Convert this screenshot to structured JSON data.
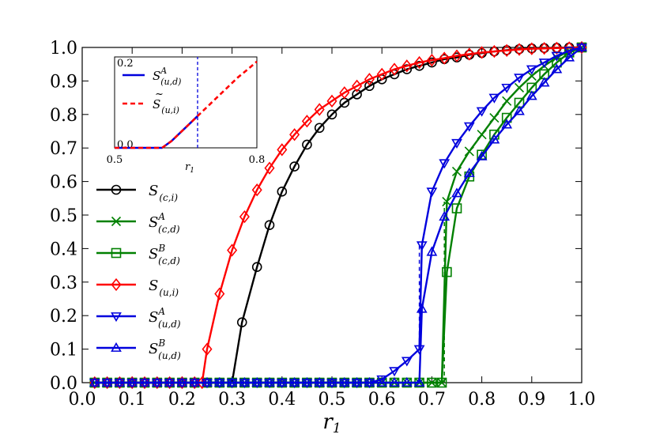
{
  "chart_data": {
    "type": "line",
    "xlabel": "r1",
    "xlim": [
      0.0,
      1.0
    ],
    "ylim": [
      0.0,
      1.0
    ],
    "xticks": [
      "0.0",
      "0.1",
      "0.2",
      "0.3",
      "0.4",
      "0.5",
      "0.6",
      "0.7",
      "0.8",
      "0.9",
      "1.0"
    ],
    "yticks": [
      "0.0",
      "0.1",
      "0.2",
      "0.3",
      "0.4",
      "0.5",
      "0.6",
      "0.7",
      "0.8",
      "0.9",
      "1.0"
    ],
    "legend_position": "center-left",
    "grid": false,
    "series": [
      {
        "name": "S(c,i)",
        "color": "#000000",
        "marker": "circle",
        "points": [
          [
            0.025,
            0
          ],
          [
            0.05,
            0
          ],
          [
            0.075,
            0
          ],
          [
            0.1,
            0
          ],
          [
            0.125,
            0
          ],
          [
            0.15,
            0
          ],
          [
            0.175,
            0
          ],
          [
            0.2,
            0
          ],
          [
            0.225,
            0
          ],
          [
            0.25,
            0
          ],
          [
            0.275,
            0
          ],
          [
            0.3,
            0
          ],
          [
            0.32,
            0.18
          ],
          [
            0.35,
            0.345
          ],
          [
            0.375,
            0.47
          ],
          [
            0.4,
            0.57
          ],
          [
            0.425,
            0.645
          ],
          [
            0.45,
            0.71
          ],
          [
            0.475,
            0.76
          ],
          [
            0.5,
            0.8
          ],
          [
            0.525,
            0.835
          ],
          [
            0.55,
            0.86
          ],
          [
            0.575,
            0.885
          ],
          [
            0.6,
            0.905
          ],
          [
            0.625,
            0.92
          ],
          [
            0.65,
            0.935
          ],
          [
            0.675,
            0.945
          ],
          [
            0.7,
            0.955
          ],
          [
            0.725,
            0.965
          ],
          [
            0.75,
            0.97
          ],
          [
            0.775,
            0.978
          ],
          [
            0.8,
            0.983
          ],
          [
            0.825,
            0.988
          ],
          [
            0.85,
            0.992
          ],
          [
            0.875,
            0.995
          ],
          [
            0.9,
            0.997
          ],
          [
            0.925,
            0.998
          ],
          [
            0.95,
            0.999
          ],
          [
            0.975,
            1.0
          ],
          [
            1.0,
            1.0
          ]
        ]
      },
      {
        "name": "S^A(c,d)",
        "color": "#008000",
        "marker": "x",
        "points": [
          [
            0.025,
            0
          ],
          [
            0.05,
            0
          ],
          [
            0.075,
            0
          ],
          [
            0.1,
            0
          ],
          [
            0.125,
            0
          ],
          [
            0.15,
            0
          ],
          [
            0.175,
            0
          ],
          [
            0.2,
            0
          ],
          [
            0.225,
            0
          ],
          [
            0.25,
            0
          ],
          [
            0.275,
            0
          ],
          [
            0.3,
            0
          ],
          [
            0.325,
            0
          ],
          [
            0.35,
            0
          ],
          [
            0.375,
            0
          ],
          [
            0.4,
            0
          ],
          [
            0.425,
            0
          ],
          [
            0.45,
            0
          ],
          [
            0.475,
            0
          ],
          [
            0.5,
            0
          ],
          [
            0.525,
            0
          ],
          [
            0.55,
            0
          ],
          [
            0.575,
            0
          ],
          [
            0.6,
            0
          ],
          [
            0.625,
            0
          ],
          [
            0.65,
            0
          ],
          [
            0.675,
            0
          ],
          [
            0.7,
            0
          ],
          [
            0.72,
            0
          ],
          [
            0.73,
            0.54
          ],
          [
            0.75,
            0.63
          ],
          [
            0.775,
            0.69
          ],
          [
            0.8,
            0.74
          ],
          [
            0.825,
            0.79
          ],
          [
            0.85,
            0.84
          ],
          [
            0.875,
            0.88
          ],
          [
            0.9,
            0.915
          ],
          [
            0.925,
            0.945
          ],
          [
            0.95,
            0.97
          ],
          [
            0.975,
            0.99
          ],
          [
            1.0,
            1.0
          ]
        ]
      },
      {
        "name": "S^B(c,d)",
        "color": "#008000",
        "marker": "square",
        "points": [
          [
            0.025,
            0
          ],
          [
            0.05,
            0
          ],
          [
            0.075,
            0
          ],
          [
            0.1,
            0
          ],
          [
            0.125,
            0
          ],
          [
            0.15,
            0
          ],
          [
            0.175,
            0
          ],
          [
            0.2,
            0
          ],
          [
            0.225,
            0
          ],
          [
            0.25,
            0
          ],
          [
            0.275,
            0
          ],
          [
            0.3,
            0
          ],
          [
            0.325,
            0
          ],
          [
            0.35,
            0
          ],
          [
            0.375,
            0
          ],
          [
            0.4,
            0
          ],
          [
            0.425,
            0
          ],
          [
            0.45,
            0
          ],
          [
            0.475,
            0
          ],
          [
            0.5,
            0
          ],
          [
            0.525,
            0
          ],
          [
            0.55,
            0
          ],
          [
            0.575,
            0
          ],
          [
            0.6,
            0
          ],
          [
            0.625,
            0
          ],
          [
            0.65,
            0
          ],
          [
            0.675,
            0
          ],
          [
            0.7,
            0
          ],
          [
            0.72,
            0
          ],
          [
            0.73,
            0.33
          ],
          [
            0.75,
            0.52
          ],
          [
            0.775,
            0.615
          ],
          [
            0.8,
            0.68
          ],
          [
            0.825,
            0.74
          ],
          [
            0.85,
            0.79
          ],
          [
            0.875,
            0.835
          ],
          [
            0.9,
            0.88
          ],
          [
            0.925,
            0.92
          ],
          [
            0.95,
            0.955
          ],
          [
            0.975,
            0.985
          ],
          [
            1.0,
            1.0
          ]
        ]
      },
      {
        "name": "S(u,i)",
        "color": "#ff0000",
        "marker": "diamond",
        "points": [
          [
            0.025,
            0
          ],
          [
            0.05,
            0
          ],
          [
            0.075,
            0
          ],
          [
            0.1,
            0
          ],
          [
            0.125,
            0
          ],
          [
            0.15,
            0
          ],
          [
            0.175,
            0
          ],
          [
            0.2,
            0
          ],
          [
            0.225,
            0
          ],
          [
            0.24,
            0
          ],
          [
            0.25,
            0.1
          ],
          [
            0.275,
            0.265
          ],
          [
            0.3,
            0.395
          ],
          [
            0.325,
            0.495
          ],
          [
            0.35,
            0.575
          ],
          [
            0.375,
            0.64
          ],
          [
            0.4,
            0.695
          ],
          [
            0.425,
            0.74
          ],
          [
            0.45,
            0.78
          ],
          [
            0.475,
            0.815
          ],
          [
            0.5,
            0.84
          ],
          [
            0.525,
            0.865
          ],
          [
            0.55,
            0.885
          ],
          [
            0.575,
            0.905
          ],
          [
            0.6,
            0.92
          ],
          [
            0.625,
            0.935
          ],
          [
            0.65,
            0.945
          ],
          [
            0.675,
            0.955
          ],
          [
            0.7,
            0.962
          ],
          [
            0.725,
            0.968
          ],
          [
            0.75,
            0.975
          ],
          [
            0.775,
            0.98
          ],
          [
            0.8,
            0.985
          ],
          [
            0.825,
            0.988
          ],
          [
            0.85,
            0.991
          ],
          [
            0.875,
            0.994
          ],
          [
            0.9,
            0.996
          ],
          [
            0.925,
            0.997
          ],
          [
            0.95,
            0.998
          ],
          [
            0.975,
            0.999
          ],
          [
            1.0,
            1.0
          ]
        ]
      },
      {
        "name": "S^A(u,d)",
        "color": "#0000dd",
        "marker": "triangle-down",
        "points": [
          [
            0.025,
            0
          ],
          [
            0.05,
            0
          ],
          [
            0.075,
            0
          ],
          [
            0.1,
            0
          ],
          [
            0.125,
            0
          ],
          [
            0.15,
            0
          ],
          [
            0.175,
            0
          ],
          [
            0.2,
            0
          ],
          [
            0.225,
            0
          ],
          [
            0.25,
            0
          ],
          [
            0.275,
            0
          ],
          [
            0.3,
            0
          ],
          [
            0.325,
            0
          ],
          [
            0.35,
            0
          ],
          [
            0.375,
            0
          ],
          [
            0.4,
            0
          ],
          [
            0.425,
            0
          ],
          [
            0.45,
            0
          ],
          [
            0.475,
            0
          ],
          [
            0.5,
            0
          ],
          [
            0.525,
            0
          ],
          [
            0.55,
            0
          ],
          [
            0.575,
            0
          ],
          [
            0.6,
            0.01
          ],
          [
            0.625,
            0.035
          ],
          [
            0.65,
            0.065
          ],
          [
            0.675,
            0.1
          ],
          [
            0.68,
            0.41
          ],
          [
            0.7,
            0.57
          ],
          [
            0.725,
            0.655
          ],
          [
            0.75,
            0.715
          ],
          [
            0.775,
            0.765
          ],
          [
            0.8,
            0.81
          ],
          [
            0.825,
            0.85
          ],
          [
            0.85,
            0.88
          ],
          [
            0.875,
            0.91
          ],
          [
            0.9,
            0.935
          ],
          [
            0.925,
            0.955
          ],
          [
            0.95,
            0.975
          ],
          [
            0.975,
            0.99
          ],
          [
            1.0,
            1.0
          ]
        ]
      },
      {
        "name": "S^B(u,d)",
        "color": "#0000dd",
        "marker": "triangle-up",
        "points": [
          [
            0.025,
            0
          ],
          [
            0.05,
            0
          ],
          [
            0.075,
            0
          ],
          [
            0.1,
            0
          ],
          [
            0.125,
            0
          ],
          [
            0.15,
            0
          ],
          [
            0.175,
            0
          ],
          [
            0.2,
            0
          ],
          [
            0.225,
            0
          ],
          [
            0.25,
            0
          ],
          [
            0.275,
            0
          ],
          [
            0.3,
            0
          ],
          [
            0.325,
            0
          ],
          [
            0.35,
            0
          ],
          [
            0.375,
            0
          ],
          [
            0.4,
            0
          ],
          [
            0.425,
            0
          ],
          [
            0.45,
            0
          ],
          [
            0.475,
            0
          ],
          [
            0.5,
            0
          ],
          [
            0.525,
            0
          ],
          [
            0.55,
            0
          ],
          [
            0.575,
            0
          ],
          [
            0.6,
            0
          ],
          [
            0.625,
            0
          ],
          [
            0.65,
            0
          ],
          [
            0.675,
            0
          ],
          [
            0.68,
            0.22
          ],
          [
            0.7,
            0.39
          ],
          [
            0.725,
            0.495
          ],
          [
            0.75,
            0.565
          ],
          [
            0.775,
            0.625
          ],
          [
            0.8,
            0.675
          ],
          [
            0.825,
            0.725
          ],
          [
            0.85,
            0.77
          ],
          [
            0.875,
            0.81
          ],
          [
            0.9,
            0.855
          ],
          [
            0.925,
            0.895
          ],
          [
            0.95,
            0.935
          ],
          [
            0.975,
            0.97
          ],
          [
            1.0,
            1.0
          ]
        ]
      }
    ],
    "vlines": [
      {
        "x": 0.675,
        "y_from": 0.1,
        "y_to": 0.41,
        "color": "#0000dd",
        "style": "dashed"
      },
      {
        "x": 0.725,
        "y_from": 0.0,
        "y_to": 0.54,
        "color": "#008000",
        "style": "dashed"
      }
    ],
    "inset": {
      "xlabel": "r1",
      "xlim": [
        0.5,
        0.8
      ],
      "ylim": [
        0.0,
        0.2
      ],
      "xticks": [
        "0.5",
        "0.8"
      ],
      "yticks": [
        "0.0",
        "0.2"
      ],
      "series": [
        {
          "name": "S^A(u,d)",
          "color": "#0000dd",
          "style": "solid",
          "points": [
            [
              0.5,
              0
            ],
            [
              0.6,
              0
            ],
            [
              0.62,
              0.015
            ],
            [
              0.64,
              0.035
            ],
            [
              0.66,
              0.055
            ],
            [
              0.675,
              0.07
            ]
          ]
        },
        {
          "name": "~S(u,i)",
          "color": "#ff0000",
          "style": "dashed",
          "points": [
            [
              0.5,
              0
            ],
            [
              0.6,
              0
            ],
            [
              0.62,
              0.015
            ],
            [
              0.64,
              0.035
            ],
            [
              0.66,
              0.055
            ],
            [
              0.68,
              0.075
            ],
            [
              0.7,
              0.095
            ],
            [
              0.72,
              0.115
            ],
            [
              0.74,
              0.135
            ],
            [
              0.76,
              0.155
            ],
            [
              0.78,
              0.172
            ],
            [
              0.8,
              0.19
            ]
          ]
        }
      ],
      "vline": {
        "x": 0.675,
        "color": "#0000dd",
        "style": "dashed"
      }
    }
  }
}
